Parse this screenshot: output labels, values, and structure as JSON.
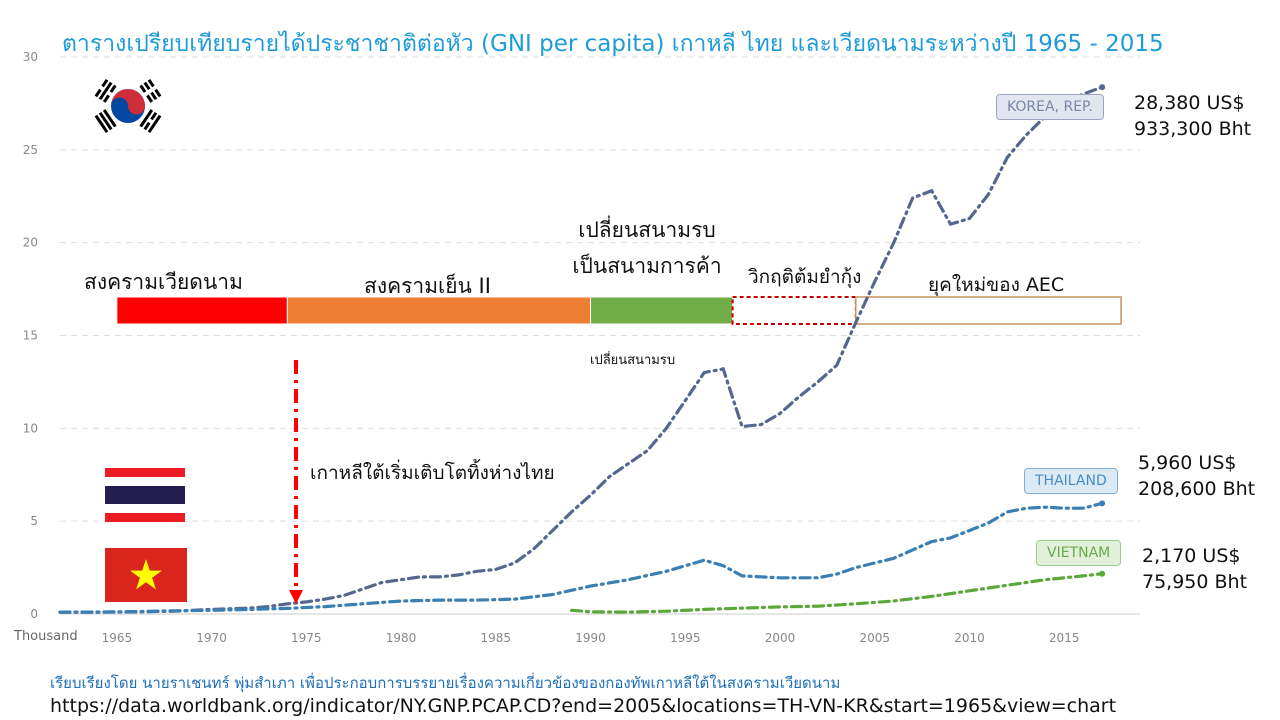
{
  "title": "ตารางเปรียบเทียบรายได้ประชาชาติต่อหัว (GNI per capita)  เกาหลี  ไทย และเวียดนามระหว่างปี 1965 - 2015",
  "eras": [
    {
      "label": "สงครามเวียดนาม",
      "color": "#ff0000",
      "style": "solid",
      "start": 1965,
      "end": 1974
    },
    {
      "label": "สงครามเย็น II",
      "color": "#ed7d31",
      "style": "solid",
      "start": 1974,
      "end": 1990
    },
    {
      "label": "เปลี่ยนสนามรบ เป็นสนามการค้า",
      "color": "#70ad47",
      "style": "solid",
      "start": 1990,
      "end": 1997.5
    },
    {
      "label": "วิกฤติต้มยำกุ้ง",
      "color": "#c00000",
      "style": "dashed",
      "start": 1997.5,
      "end": 2004
    },
    {
      "label": "ยุคใหม่ของ AEC",
      "color": "#c5955a",
      "style": "outline",
      "start": 2004,
      "end": 2018
    }
  ],
  "annotations": {
    "korea_growth": "เกาหลีใต้เริ่มเติบโตทิ้งห่างไทย",
    "battlefield_change": "เปลี่ยนสนามรบ"
  },
  "tags": {
    "korea": "KOREA, REP.",
    "thailand": "THAILAND",
    "vietnam": "VIETNAM"
  },
  "callouts": {
    "korea_usd": "28,380 US$",
    "korea_bht": "933,300 Bht",
    "thailand_usd": "5,960 US$",
    "thailand_bht": "208,600 Bht",
    "vietnam_usd": "2,170 US$",
    "vietnam_bht": "75,950 Bht"
  },
  "footer": {
    "credit": "เรียบเรียงโดย นายราเชนทร์ พุ่มสำเภา เพื่อประกอบการบรรยายเรื่องความเกี่ยวข้องของกองทัพเกาหลีใต้ในสงครามเวียดนาม",
    "url": "https://data.worldbank.org/indicator/NY.GNP.PCAP.CD?end=2005&locations=TH-VN-KR&start=1965&view=chart"
  },
  "flags": [
    "south-korea-flag",
    "thailand-flag",
    "vietnam-flag"
  ],
  "chart_data": {
    "type": "line",
    "ylabel": "Thousand",
    "xlim": [
      1962,
      2019
    ],
    "ylim": [
      0,
      30
    ],
    "yticks": [
      0,
      5,
      10,
      15,
      20,
      25,
      30
    ],
    "xticks": [
      1965,
      1970,
      1975,
      1980,
      1985,
      1990,
      1995,
      2000,
      2005,
      2010,
      2015
    ],
    "grid": "horizontal dashed",
    "series": [
      {
        "name": "KOREA, REP.",
        "color": "#56678f",
        "x": [
          1962,
          1964,
          1966,
          1968,
          1970,
          1972,
          1973,
          1974,
          1975,
          1976,
          1977,
          1978,
          1979,
          1980,
          1981,
          1982,
          1983,
          1984,
          1985,
          1986,
          1987,
          1988,
          1989,
          1990,
          1991,
          1992,
          1993,
          1994,
          1995,
          1996,
          1997,
          1998,
          1999,
          2000,
          2001,
          2002,
          2003,
          2004,
          2005,
          2006,
          2007,
          2008,
          2009,
          2010,
          2011,
          2012,
          2013,
          2014,
          2015,
          2016,
          2017
        ],
        "y": [
          0.1,
          0.1,
          0.12,
          0.15,
          0.25,
          0.32,
          0.4,
          0.55,
          0.65,
          0.8,
          1.0,
          1.35,
          1.7,
          1.85,
          2.0,
          2.0,
          2.1,
          2.3,
          2.4,
          2.75,
          3.5,
          4.5,
          5.5,
          6.4,
          7.4,
          8.1,
          8.8,
          10.0,
          11.5,
          13.0,
          13.2,
          10.1,
          10.2,
          10.8,
          11.7,
          12.5,
          13.4,
          15.7,
          17.9,
          20.0,
          22.4,
          22.8,
          21.0,
          21.3,
          22.6,
          24.6,
          25.8,
          26.8,
          27.5,
          28.0,
          28.38
        ]
      },
      {
        "name": "THAILAND",
        "color": "#3a7fb4",
        "x": [
          1962,
          1964,
          1966,
          1968,
          1970,
          1972,
          1974,
          1976,
          1978,
          1980,
          1982,
          1984,
          1986,
          1988,
          1990,
          1992,
          1994,
          1996,
          1997,
          1998,
          2000,
          2002,
          2003,
          2004,
          2006,
          2008,
          2009,
          2010,
          2011,
          2012,
          2013,
          2014,
          2015,
          2016,
          2017
        ],
        "y": [
          0.1,
          0.1,
          0.13,
          0.17,
          0.2,
          0.25,
          0.3,
          0.4,
          0.55,
          0.7,
          0.75,
          0.75,
          0.8,
          1.05,
          1.5,
          1.85,
          2.3,
          2.9,
          2.6,
          2.05,
          1.95,
          1.95,
          2.15,
          2.5,
          3.0,
          3.9,
          4.1,
          4.5,
          4.9,
          5.5,
          5.7,
          5.75,
          5.7,
          5.7,
          5.96
        ]
      },
      {
        "name": "VIETNAM",
        "color": "#5aa83a",
        "x": [
          1989,
          1990,
          1992,
          1994,
          1996,
          1998,
          2000,
          2002,
          2004,
          2006,
          2008,
          2010,
          2012,
          2014,
          2016,
          2017
        ],
        "y": [
          0.2,
          0.12,
          0.1,
          0.15,
          0.25,
          0.32,
          0.38,
          0.42,
          0.55,
          0.7,
          0.95,
          1.25,
          1.55,
          1.85,
          2.05,
          2.17
        ]
      }
    ]
  }
}
